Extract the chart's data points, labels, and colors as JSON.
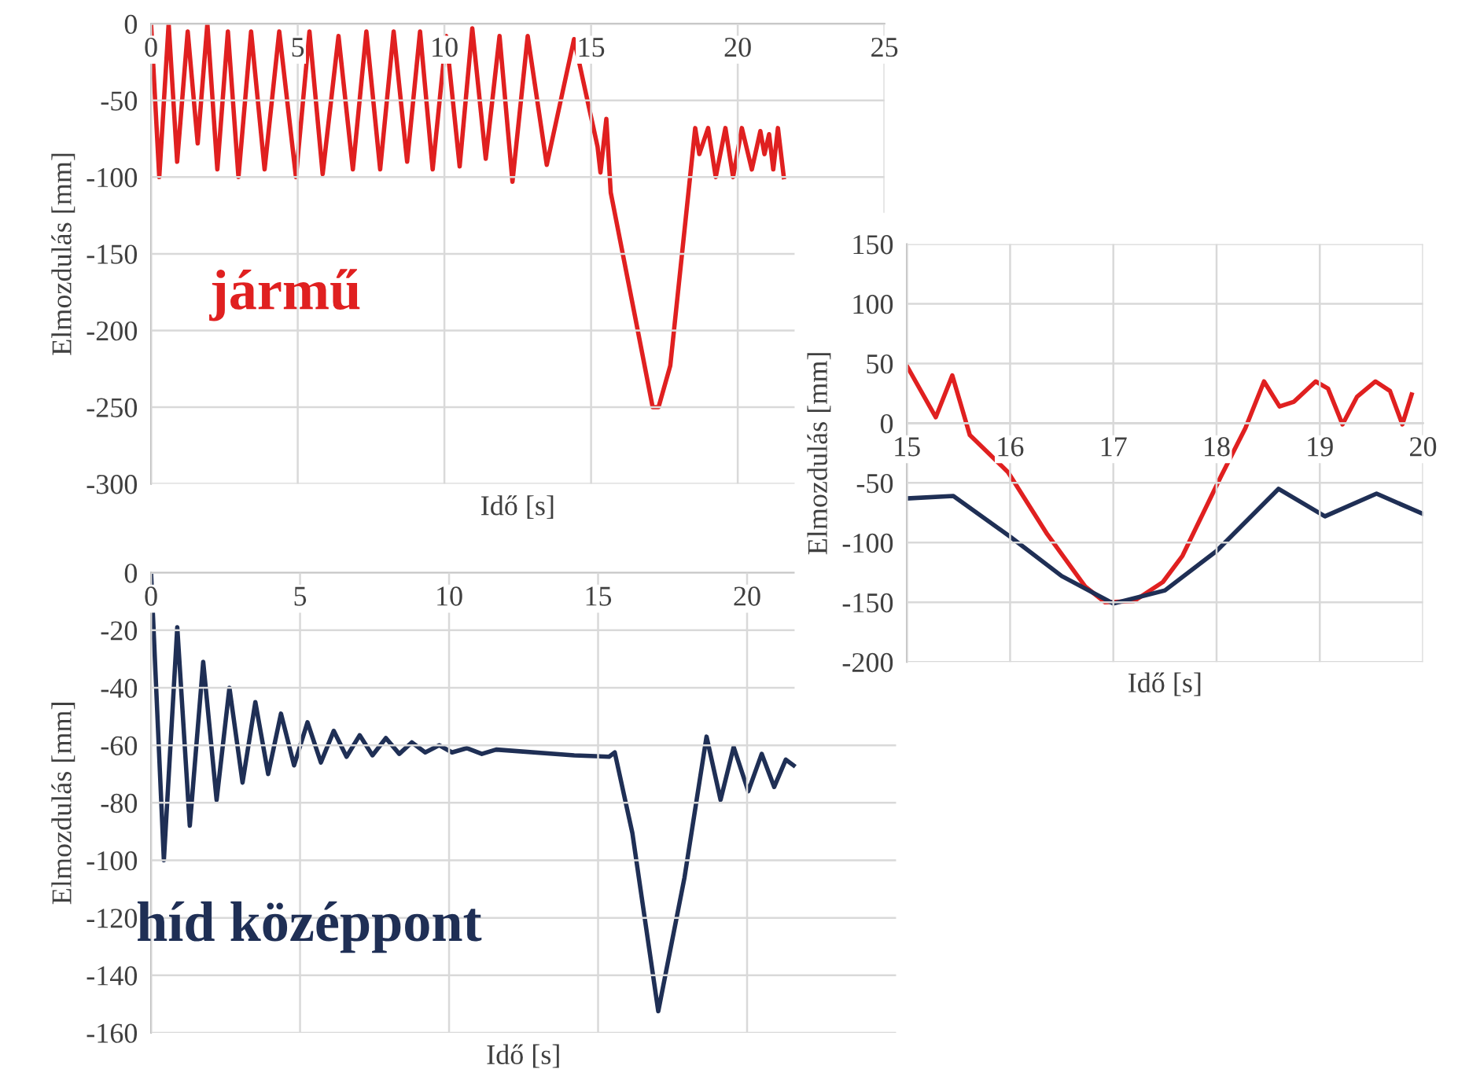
{
  "chart_data": [
    {
      "type": "line",
      "xlabel": "Idő [s]",
      "ylabel": "Elmozdulás [mm]",
      "xlim": [
        0,
        25
      ],
      "ylim": [
        -300,
        0
      ],
      "xticks": [
        0,
        5,
        10,
        15,
        20,
        25
      ],
      "yticks": [
        -300,
        -250,
        -200,
        -150,
        -100,
        -50,
        0
      ],
      "grid": true,
      "annotations": [
        "jármű"
      ],
      "series": [
        {
          "color": "#e02020",
          "x": [
            0,
            0.28,
            0.6,
            0.89,
            1.25,
            1.59,
            1.92,
            2.26,
            2.62,
            2.98,
            3.41,
            3.87,
            4.37,
            4.94,
            5.4,
            5.85,
            6.39,
            6.88,
            7.34,
            7.81,
            8.27,
            8.73,
            9.17,
            9.6,
            10.06,
            10.52,
            10.95,
            11.41,
            11.88,
            12.32,
            12.84,
            13.49,
            14.42,
            15.22,
            15.32,
            15.52,
            15.67,
            16.5,
            17.1,
            17.3,
            17.7,
            18.55,
            18.69,
            18.99,
            19.25,
            19.58,
            19.84,
            20.14,
            20.48,
            20.77,
            20.91,
            21.07,
            21.21,
            21.37,
            21.57
          ],
          "values": [
            0,
            -100,
            0,
            -90,
            -5,
            -78,
            0,
            -95,
            -5,
            -100,
            -5,
            -95,
            -5,
            -100,
            -5,
            -98,
            -8,
            -95,
            -5,
            -95,
            -5,
            -90,
            -5,
            -95,
            -8,
            -93,
            -3,
            -88,
            -8,
            -103,
            -8,
            -92,
            -10,
            -80,
            -97,
            -62,
            -110,
            -191,
            -250,
            -250,
            -223,
            -68,
            -85,
            -68,
            -100,
            -68,
            -100,
            -68,
            -95,
            -70,
            -85,
            -72,
            -95,
            -68,
            -100
          ]
        }
      ]
    },
    {
      "type": "line",
      "xlabel": "Idő [s]",
      "ylabel": "Elmozdulás [mm]",
      "xlim": [
        0,
        25
      ],
      "ylim": [
        -160,
        0
      ],
      "xticks": [
        0,
        5,
        10,
        15,
        20
      ],
      "yticks": [
        -160,
        -140,
        -120,
        -100,
        -80,
        -60,
        -40,
        -20,
        0
      ],
      "grid": true,
      "annotations": [
        "híd középpont"
      ],
      "series": [
        {
          "color": "#1f2f55",
          "x": [
            0,
            0.43,
            0.88,
            1.3,
            1.75,
            2.2,
            2.63,
            3.07,
            3.5,
            3.93,
            4.36,
            4.8,
            5.25,
            5.7,
            6.13,
            6.56,
            7.0,
            7.43,
            7.88,
            8.33,
            8.75,
            9.2,
            9.67,
            10.1,
            10.6,
            11.1,
            11.58,
            14.2,
            15.37,
            15.56,
            16.15,
            17.02,
            17.9,
            18.64,
            19.11,
            19.55,
            20.04,
            20.49,
            20.91,
            21.3,
            21.56
          ],
          "values": [
            0,
            -100,
            -19,
            -88,
            -31,
            -79,
            -40,
            -73,
            -45,
            -70,
            -49,
            -67,
            -52,
            -66,
            -55,
            -64,
            -56.5,
            -63.5,
            -57.5,
            -63,
            -59,
            -62.5,
            -60,
            -62.5,
            -61,
            -63,
            -61.5,
            -63.5,
            -64,
            -62.5,
            -90.5,
            -152.5,
            -106,
            -57,
            -79,
            -60.6,
            -76,
            -63,
            -74.5,
            -65,
            -67
          ]
        }
      ]
    },
    {
      "type": "line",
      "xlabel": "Idő [s]",
      "ylabel": "Elmozdulás [mm]",
      "xlim": [
        15,
        20
      ],
      "ylim": [
        -200,
        150
      ],
      "xticks": [
        15,
        16,
        17,
        18,
        19,
        20
      ],
      "yticks": [
        -200,
        -150,
        -100,
        -50,
        0,
        50,
        100,
        150
      ],
      "grid": true,
      "series": [
        {
          "color": "#e02020",
          "x": [
            15,
            15.28,
            15.44,
            15.61,
            15.98,
            16.36,
            16.73,
            16.92,
            17.2,
            17.48,
            17.67,
            18.04,
            18.28,
            18.46,
            18.61,
            18.75,
            18.96,
            19.08,
            19.22,
            19.36,
            19.54,
            19.68,
            19.8,
            19.89
          ],
          "values": [
            48,
            5,
            40,
            -10,
            -41,
            -93,
            -137,
            -150,
            -149,
            -133,
            -111,
            -45,
            -4,
            35,
            14,
            18,
            35,
            29,
            -1,
            22,
            35,
            27,
            -1,
            24
          ]
        },
        {
          "color": "#1f2f55",
          "x": [
            15,
            15.45,
            16,
            16.5,
            17,
            17.5,
            18,
            18.6,
            19.05,
            19.55,
            20
          ],
          "values": [
            -63,
            -61,
            -95,
            -128,
            -151,
            -140,
            -107,
            -55,
            -78,
            -59,
            -76
          ]
        }
      ]
    }
  ]
}
